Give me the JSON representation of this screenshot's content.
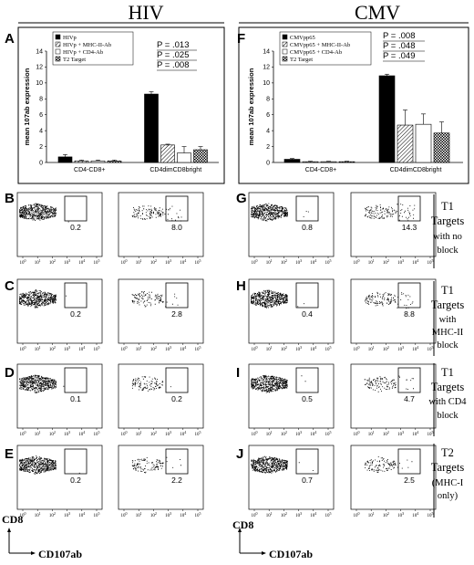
{
  "titles": {
    "left": "HIV",
    "right": "CMV"
  },
  "panel_letters": {
    "A": "A",
    "B": "B",
    "C": "C",
    "D": "D",
    "E": "E",
    "F": "F",
    "G": "G",
    "H": "H",
    "I": "I",
    "J": "J"
  },
  "flow_axes": {
    "y_label": "CD8",
    "x_label": "CD107ab"
  },
  "flow_ticks": [
    "10^0",
    "10^1",
    "10^2",
    "10^3",
    "10^4",
    "10^5"
  ],
  "row_labels": [
    [
      "T1",
      "Targets",
      "with no",
      "block"
    ],
    [
      "T1",
      "Targets",
      "with",
      "MHC-II",
      "block"
    ],
    [
      "T1",
      "Targets",
      "with CD4",
      "block"
    ],
    [
      "T2",
      "Targets",
      "(MHC-I",
      "only)"
    ]
  ],
  "chart_data": [
    {
      "type": "bar",
      "panel": "A",
      "ylabel": "mean 107ab expression",
      "ylim": [
        0,
        14
      ],
      "yticks": [
        0,
        2,
        4,
        6,
        8,
        10,
        12,
        14
      ],
      "categories": [
        "CD4-CD8+",
        "CD4dimCD8bright"
      ],
      "series": [
        {
          "name": "HIVp",
          "values": [
            0.7,
            8.6
          ],
          "errors": [
            0.3,
            0.3
          ],
          "fill": "#000000"
        },
        {
          "name": "HIVp + MHC-II-Ab",
          "values": [
            0.2,
            2.2
          ],
          "errors": [
            0.1,
            0.1
          ],
          "fill": "hatch"
        },
        {
          "name": "HIVp + CD4-Ab",
          "values": [
            0.2,
            1.2
          ],
          "errors": [
            0.1,
            0.8
          ],
          "fill": "#ffffff"
        },
        {
          "name": "T2 Target",
          "values": [
            0.2,
            1.6
          ],
          "errors": [
            0.1,
            0.4
          ],
          "fill": "check"
        }
      ],
      "p_values": [
        "P = .013",
        "P = .025",
        "P = .008"
      ]
    },
    {
      "type": "bar",
      "panel": "F",
      "ylabel": "mean 107ab expression",
      "ylim": [
        0,
        14
      ],
      "yticks": [
        0,
        2,
        4,
        6,
        8,
        10,
        12,
        14
      ],
      "categories": [
        "CD4-CD8+",
        "CD4dimCD8bright"
      ],
      "series": [
        {
          "name": "CMVpp65",
          "values": [
            0.4,
            10.9
          ],
          "errors": [
            0.1,
            0.2
          ],
          "fill": "#000000"
        },
        {
          "name": "CMVpp65 + MHC-II-Ab",
          "values": [
            0.1,
            4.7
          ],
          "errors": [
            0.05,
            1.9
          ],
          "fill": "hatch"
        },
        {
          "name": "CMVpp65 + CD4-Ab",
          "values": [
            0.1,
            4.8
          ],
          "errors": [
            0.05,
            1.3
          ],
          "fill": "#ffffff"
        },
        {
          "name": "T2 Target",
          "values": [
            0.1,
            3.7
          ],
          "errors": [
            0.05,
            1.4
          ],
          "fill": "check"
        }
      ],
      "p_values": [
        "P = .008",
        "P = .048",
        "P = .049"
      ]
    },
    {
      "type": "scatter",
      "description": "flow cytometry dot plots, gate percentages of CD107ab+ cells",
      "xlabel": "CD107ab",
      "ylabel": "CD8",
      "rows": [
        {
          "left_label": "B",
          "right_label": "G",
          "hiv": {
            "cd4_cd8": "0.2",
            "cd4dim": "8.0"
          },
          "cmv": {
            "cd4_cd8": "0.8",
            "cd4dim": "14.3"
          }
        },
        {
          "left_label": "C",
          "right_label": "H",
          "hiv": {
            "cd4_cd8": "0.2",
            "cd4dim": "2.8"
          },
          "cmv": {
            "cd4_cd8": "0.4",
            "cd4dim": "8.8"
          }
        },
        {
          "left_label": "D",
          "right_label": "I",
          "hiv": {
            "cd4_cd8": "0.1",
            "cd4dim": "0.2"
          },
          "cmv": {
            "cd4_cd8": "0.5",
            "cd4dim": "4.7"
          }
        },
        {
          "left_label": "E",
          "right_label": "J",
          "hiv": {
            "cd4_cd8": "0.2",
            "cd4dim": "2.2"
          },
          "cmv": {
            "cd4_cd8": "0.7",
            "cd4dim": "2.5"
          }
        }
      ]
    }
  ]
}
